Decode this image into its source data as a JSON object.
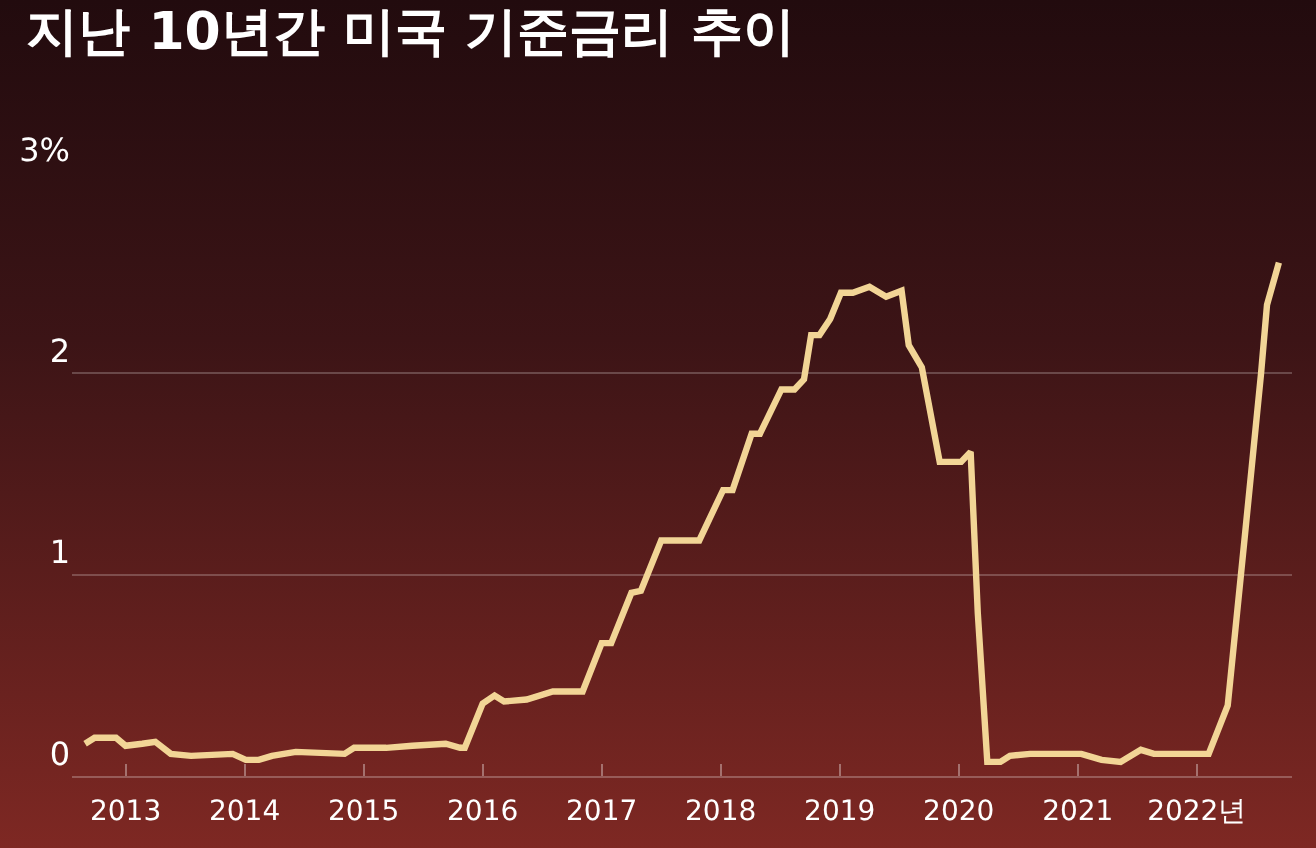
{
  "chart_data": {
    "type": "line",
    "title": "지난 10년간 미국 기준금리 추이",
    "x": [
      2012.66,
      2012.74,
      2012.92,
      2013.0,
      2013.14,
      2013.25,
      2013.38,
      2013.55,
      2013.9,
      2014.01,
      2014.12,
      2014.23,
      2014.43,
      2014.84,
      2014.92,
      2015.19,
      2015.41,
      2015.69,
      2015.81,
      2015.85,
      2016.0,
      2016.1,
      2016.18,
      2016.37,
      2016.59,
      2016.84,
      2017.0,
      2017.08,
      2017.25,
      2017.33,
      2017.5,
      2017.61,
      2017.82,
      2018.02,
      2018.1,
      2018.26,
      2018.33,
      2018.51,
      2018.62,
      2018.7,
      2018.76,
      2018.83,
      2018.92,
      2019.01,
      2019.11,
      2019.25,
      2019.39,
      2019.52,
      2019.58,
      2019.69,
      2019.84,
      2020.02,
      2020.1,
      2020.16,
      2020.24,
      2020.35,
      2020.43,
      2020.6,
      2021.03,
      2021.2,
      2021.36,
      2021.53,
      2021.64,
      2022.1,
      2022.26,
      2022.4,
      2022.54,
      2022.59,
      2022.69
    ],
    "series": [
      {
        "color": "#f2d596",
        "values": [
          0.16,
          0.19,
          0.19,
          0.15,
          0.16,
          0.17,
          0.11,
          0.1,
          0.11,
          0.08,
          0.08,
          0.1,
          0.12,
          0.11,
          0.14,
          0.14,
          0.15,
          0.16,
          0.14,
          0.14,
          0.36,
          0.4,
          0.37,
          0.38,
          0.42,
          0.42,
          0.66,
          0.66,
          0.91,
          0.92,
          1.17,
          1.17,
          1.17,
          1.42,
          1.42,
          1.7,
          1.7,
          1.92,
          1.92,
          1.97,
          2.19,
          2.19,
          2.27,
          2.4,
          2.4,
          2.43,
          2.38,
          2.41,
          2.14,
          2.03,
          1.56,
          1.56,
          1.61,
          0.81,
          0.07,
          0.07,
          0.1,
          0.11,
          0.11,
          0.08,
          0.07,
          0.13,
          0.11,
          0.11,
          0.35,
          1.17,
          2.0,
          2.34,
          2.55
        ]
      }
    ],
    "xlim": [
      2012.55,
      2022.8
    ],
    "xticks": [
      2013,
      2014,
      2015,
      2016,
      2017,
      2018,
      2019,
      2020,
      2021,
      {
        "value": 2022,
        "label": "2022년"
      }
    ],
    "ylim": [
      0,
      3
    ],
    "yticks": [
      0,
      1,
      2,
      {
        "value": 3,
        "label": "3%"
      }
    ],
    "grid": "y",
    "marker": "none",
    "line_style": "solid"
  }
}
